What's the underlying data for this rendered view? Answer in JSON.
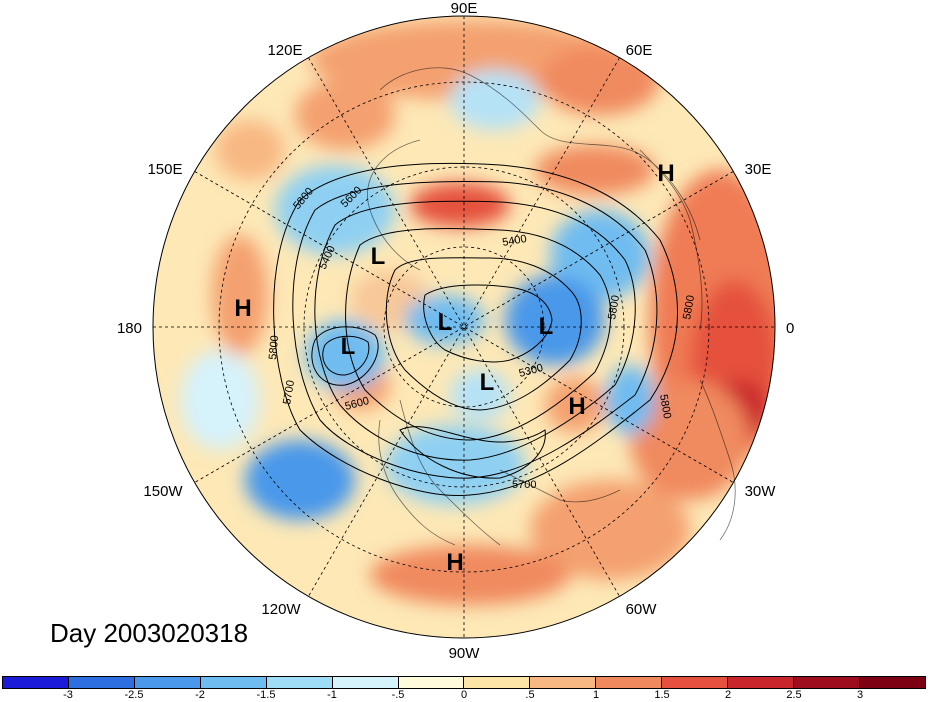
{
  "title": "Day 2003020318",
  "longitude_labels": [
    "90E",
    "60E",
    "30E",
    "0",
    "30W",
    "60W",
    "90W",
    "120W",
    "150W",
    "180",
    "150E",
    "120E"
  ],
  "pressure_centers": [
    {
      "type": "H",
      "label": "H"
    },
    {
      "type": "H",
      "label": "H"
    },
    {
      "type": "H",
      "label": "H"
    },
    {
      "type": "H",
      "label": "H"
    },
    {
      "type": "L",
      "label": "L"
    },
    {
      "type": "L",
      "label": "L"
    },
    {
      "type": "L",
      "label": "L"
    },
    {
      "type": "L",
      "label": "L"
    },
    {
      "type": "L",
      "label": "L"
    }
  ],
  "contour_labels": [
    "5800",
    "5600",
    "5400",
    "5400",
    "5800",
    "5800",
    "5800",
    "5700",
    "5600",
    "5300",
    "5700",
    "5800"
  ],
  "colorbar": {
    "colors": [
      "#1b1bd8",
      "#2d6fe0",
      "#4a98ea",
      "#6fbcf0",
      "#9fdcf6",
      "#d6f2fb",
      "#fefbdc",
      "#fde5a8",
      "#f8b883",
      "#f08a5e",
      "#e5513e",
      "#c9252c",
      "#9e0d1e",
      "#7c0012"
    ],
    "tick_labels": [
      "-3",
      "-2.5",
      "-2",
      "-1.5",
      "-1",
      "-.5",
      "0",
      ".5",
      "1",
      "1.5",
      "2",
      "2.5",
      "3"
    ]
  }
}
